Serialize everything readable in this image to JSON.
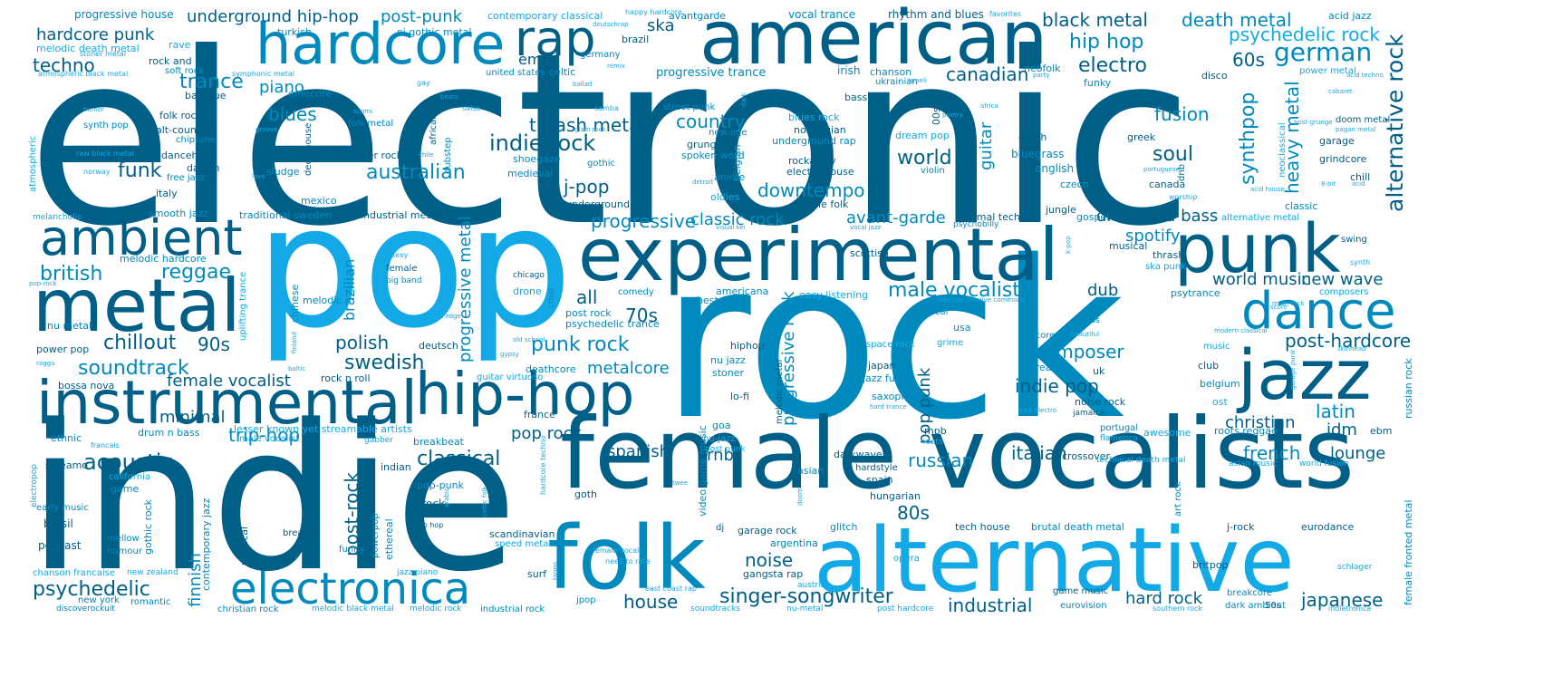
{
  "palette": {
    "dark": "#005f87",
    "mid": "#0089bd",
    "light": "#12a9e6"
  },
  "words": {
    "electronic": "electronic",
    "rock": "rock",
    "indie": "indie",
    "pop": "pop",
    "female_vocalists": "female vocalists",
    "alternative": "alternative",
    "american": "american",
    "experimental": "experimental",
    "folk": "folk",
    "hardcore": "hardcore",
    "punk": "punk",
    "metal": "metal",
    "instrumental": "instrumental",
    "hip_hop": "hip-hop",
    "electronica": "electronica",
    "ambient": "ambient",
    "jazz": "jazz",
    "dance": "dance",
    "rap": "rap",
    "singer_songwriter": "singer-songwriter",
    "male_vocalists": "male vocalists",
    "hip_hop_space": "hip hop",
    "german": "german",
    "alternative_rock": "alternative rock",
    "black_metal": "black metal",
    "death_metal": "death metal",
    "psychedelic_rock": "psychedelic rock",
    "underground_hip_hop": "underground hip-hop",
    "post_punk": "post-punk",
    "progressive_house": "progressive house",
    "hardcore_punk": "hardcore punk",
    "techno": "techno",
    "trance": "trance",
    "piano": "piano",
    "blues": "blues",
    "british": "british",
    "reggae": "reggae",
    "chillout": "chillout",
    "nineties": "90s",
    "soundtrack": "soundtrack",
    "female_vocalist": "female vocalist",
    "acoustic": "acoustic",
    "minimal": "minimal",
    "psychedelic": "psychedelic",
    "trip_hop": "trip-hop",
    "classical": "classical",
    "post_rock": "post-rock",
    "punk_rock": "punk rock",
    "thrash_metal": "thrash metal",
    "indie_rock": "indie rock",
    "australian": "australian",
    "funk": "funk",
    "country": "country",
    "j_pop": "j-pop",
    "progressive": "progressive",
    "classic_rock": "classic rock",
    "downtempo": "downtempo",
    "avant_garde": "avant-garde",
    "spotify": "spotify",
    "drum_and_bass": "drum and bass",
    "world_music": "world music",
    "new_wave": "new wave",
    "soul": "soul",
    "world": "world",
    "synthpop": "synthpop",
    "heavy_metal": "heavy metal",
    "fusion": "fusion",
    "electro": "electro",
    "canadian": "canadian",
    "sixties": "60s",
    "seventies": "70s",
    "all": "all",
    "polish": "polish",
    "swedish": "swedish",
    "metalcore": "metalcore",
    "composer": "composer",
    "indie_pop": "indie pop",
    "post_hardcore": "post-hardcore",
    "latin": "latin",
    "christian": "christian",
    "idm": "idm",
    "french": "french",
    "lounge": "lounge",
    "italian": "italian",
    "russian": "russian",
    "eighties": "80s",
    "japanese": "japanese",
    "industrial": "industrial",
    "hard_rock": "hard rock",
    "house": "house",
    "noise": "noise",
    "rnb": "rnb",
    "spanish": "spanish",
    "pop_rock": "pop rock",
    "dub": "dub",
    "emo": "emo",
    "ska": "ska",
    "finnish": "finnish",
    "progressive_metal": "progressive metal",
    "progressive_rock": "progressive rock",
    "pop_punk_v": "pop punk",
    "guitar": "guitar",
    "brazilian": "brazilian",
    "small_1": "contemporary classical",
    "small_2": "avantgarde",
    "small_3": "vocal trance",
    "small_4": "rhythm and blues",
    "small_5": "acid jazz",
    "small_6": "turkish",
    "small_7": "oi gothic metal",
    "small_8": "brazil",
    "small_9": "melodic death metal",
    "small_10": "rave",
    "small_11": "rock and roll",
    "small_12": "soft rock",
    "small_13": "celtic",
    "small_14": "germany",
    "small_15": "united states",
    "small_16": "progressive trance",
    "small_17": "irish",
    "small_18": "chanson",
    "small_19": "ukrainian",
    "small_20": "neofolk",
    "small_21": "disco",
    "small_22": "power metal",
    "small_23": "emocore",
    "small_24": "baroque",
    "small_25": "bass",
    "small_26": "funky",
    "small_27": "folk rock",
    "small_28": "alt-country",
    "small_29": "chiptune",
    "small_30": "folk metal",
    "small_31": "synth pop",
    "small_32": "street punk",
    "small_33": "blues rock",
    "small_34": "norwegian",
    "small_35": "underground rap",
    "small_36": "new age",
    "small_37": "grunge",
    "small_38": "dream pop",
    "small_39": "dutch",
    "small_40": "bluegrass",
    "small_41": "greek",
    "small_42": "garage",
    "small_43": "doom metal",
    "small_44": "grindcore",
    "small_45": "chill",
    "small_46": "dancehall",
    "small_47": "danish",
    "small_48": "free jazz",
    "small_49": "sludge",
    "small_50": "deep house",
    "small_51": "stoner rock",
    "small_52": "shoegaze",
    "small_53": "gothic",
    "small_54": "medieval",
    "small_55": "spoken word",
    "small_56": "anime",
    "small_57": "rockabilly",
    "small_58": "electro house",
    "small_59": "violin",
    "small_60": "english",
    "small_61": "czech",
    "small_62": "canada",
    "small_63": "italy",
    "small_64": "mexico",
    "small_65": "smooth jazz",
    "small_66": "traditional sweden",
    "small_67": "industrial metal",
    "small_68": "underground",
    "small_69": "oldies",
    "small_70": "indie folk",
    "small_71": "minimal techno",
    "small_72": "jungle",
    "small_73": "gospel",
    "small_74": "classic",
    "small_75": "alternative metal",
    "small_76": "swing",
    "small_77": "melancholic",
    "small_78": "melodic hardcore",
    "small_79": "chinese",
    "small_80": "female",
    "small_81": "big band",
    "small_82": "drone",
    "small_83": "chicago",
    "small_84": "crust",
    "small_85": "comedy",
    "small_86": "orchestral",
    "small_87": "americana",
    "small_88": "easy listening",
    "small_89": "scottish",
    "small_90": "psychobilly",
    "small_91": "musical",
    "small_92": "thrash",
    "small_93": "ska punk",
    "small_94": "psytrance",
    "small_95": "composers",
    "small_96": "nu metal",
    "small_97": "melodic",
    "small_98": "post rock",
    "small_99": "psychedelic trance",
    "small_100": "vocal",
    "small_101": "usa",
    "small_102": "grime",
    "small_103": "hiphop",
    "small_104": "nu jazz",
    "small_105": "stoner",
    "small_106": "power pop",
    "small_107": "deutsch",
    "small_108": "space rock",
    "small_109": "rapcore",
    "small_110": "swiss",
    "small_111": "japan",
    "small_112": "jazz fusion",
    "small_113": "music",
    "small_114": "club",
    "small_115": "belgium",
    "small_116": "ost",
    "small_117": "korean",
    "small_118": "uk",
    "small_119": "bossa nova",
    "small_120": "rock n roll",
    "small_121": "deathcore",
    "small_122": "guitar virtuoso",
    "small_123": "lo-fi",
    "small_124": "saxophone",
    "small_125": "noise rock",
    "small_126": "drum n bass",
    "small_127": "lesser known yet streamable artists",
    "small_128": "male vocalist",
    "small_129": "ethnic",
    "small_130": "gabber",
    "small_131": "breakbeat",
    "small_132": "france",
    "small_133": "goa",
    "small_134": "nu-jazz",
    "small_135": "post punk",
    "small_136": "mpb",
    "small_137": "roots",
    "small_138": "portugal",
    "small_139": "flamenco",
    "small_140": "jamaica",
    "small_141": "awesome",
    "small_142": "roots reggae",
    "small_143": "ebm",
    "small_144": "screamo",
    "small_145": "california",
    "small_146": "indian",
    "small_147": "asian",
    "small_148": "darkwave",
    "small_149": "crossover",
    "small_150": "hardstyle",
    "small_151": "technical death metal",
    "small_152": "asian music",
    "small_153": "world fusion",
    "small_154": "game",
    "small_155": "early music",
    "small_156": "brasil",
    "small_157": "podcast",
    "small_158": "mellow",
    "small_159": "humour",
    "small_160": "pop-punk",
    "small_161": "jrock",
    "small_162": "goth",
    "small_163": "spain",
    "small_164": "hungarian",
    "small_165": "breaks",
    "small_166": "funny",
    "small_167": "scandinavian",
    "small_168": "speed metal",
    "small_169": "dj",
    "small_170": "garage rock",
    "small_171": "argentina",
    "small_172": "glitch",
    "small_173": "tech house",
    "small_174": "brutal death metal",
    "small_175": "j-rock",
    "small_176": "eurodance",
    "small_177": "chanson francaise",
    "small_178": "new zealand",
    "small_179": "jazz piano",
    "small_180": "surf",
    "small_181": "gangsta rap",
    "small_182": "opera",
    "small_183": "britpop",
    "small_184": "schlager",
    "small_185": "new york",
    "small_186": "romantic",
    "small_187": "jpop",
    "small_188": "east coast rap",
    "small_189": "austrian",
    "small_190": "game music",
    "small_191": "eurovision",
    "small_192": "breakcore",
    "small_193": "dark ambient",
    "small_194": "50s",
    "small_195": "discoverockuit",
    "small_196": "christian rock",
    "small_197": "melodic black metal",
    "small_198": "melodic rock",
    "small_199": "industrial rock",
    "small_200": "soundtracks",
    "small_201": "nu-metal",
    "small_202": "post hardcore",
    "small_203": "southern rock",
    "small_204": "indietronica",
    "small_205": "female fronted metal",
    "small_206": "russian rock",
    "small_207": "atmospheric",
    "small_208": "electropop",
    "small_209": "gothic rock",
    "small_210": "contemporary jazz",
    "small_211": "political",
    "small_212": "powerpop",
    "small_213": "ethereal",
    "small_214": "uplifting trance",
    "small_215": "dubstep",
    "small_216": "african",
    "small_217": "video game music",
    "small_218": "melodic metal",
    "small_219": "hardcore techno",
    "small_220": "happy hardcore",
    "small_221": "favorites",
    "small_222": "deutschrap",
    "small_223": "stoner metal",
    "small_224": "atmospheric black metal",
    "small_225": "symphonic metal",
    "small_226": "gay",
    "small_227": "beats",
    "small_228": "ballad",
    "small_229": "israeli",
    "small_230": "party",
    "small_231": "acid",
    "small_232": "salsa",
    "small_233": "samba",
    "small_234": "cabaret",
    "small_235": "africa",
    "small_236": "humor",
    "small_237": "suomi",
    "small_238": "groove",
    "small_239": "poetry",
    "small_240": "post-grunge",
    "small_241": "pagan metal",
    "small_242": "raw black metal",
    "small_243": "norway",
    "small_244": "love",
    "small_245": "chile",
    "small_246": "detroit",
    "small_247": "portuguese",
    "small_248": "8-bit",
    "small_249": "worship",
    "small_250": "visual kei",
    "small_251": "vocal jazz",
    "small_252": "modern classical",
    "small_253": "skinhead",
    "small_254": "synth",
    "small_255": "score",
    "small_256": "math rock",
    "small_257": "beautiful",
    "small_258": "ragga",
    "small_259": "baltic",
    "small_260": "francais",
    "small_261": "twee",
    "small_262": "need to rate",
    "small_263": "female vocal",
    "small_264": "dark electro",
    "small_265": "hard trance",
    "small_266": "mexican creative commons",
    "small_267": "old school",
    "small_268": "straight edge",
    "small_269": "gypsy",
    "small_270": "pop-rock",
    "small_271": "neoclassical",
    "small_272": "belgian",
    "small_273": "00s",
    "small_274": "dnb",
    "small_275": "dark",
    "small_276": "remix",
    "small_277": "celtic folk",
    "small_278": "acid techno",
    "small_279": "k-pop",
    "small_280": "garage punk",
    "small_281": "doom",
    "small_282": "finland",
    "small_283": "tango",
    "small_284": "art rock",
    "small_285": "arabic",
    "small_286": "glam rock",
    "small_287": "sexy",
    "small_288": "chinese",
    "small_289": "acid house",
    "small_290": "trip hop",
    "small_291": "ethnic",
    "small_292": "alt country"
  }
}
